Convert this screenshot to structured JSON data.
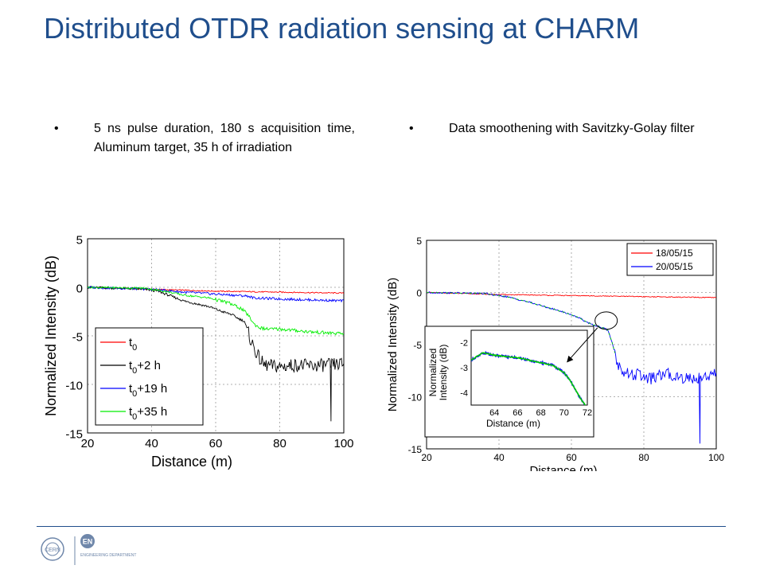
{
  "slide": {
    "title": "Distributed OTDR radiation sensing at CHARM",
    "bullet_left": "5 ns pulse duration, 180 s acquisition time, Aluminum target, 35 h of irradiation",
    "bullet_right": "Data smoothening with Savitzky-Golay filter",
    "bullet_symbol": "•",
    "colors": {
      "title": "#1f4e8c",
      "footer_line": "#1f4e8c"
    },
    "logos": [
      "CERN",
      "EN",
      "ENGINEERING DEPARTMENT"
    ]
  },
  "chart_data": [
    {
      "type": "line",
      "xlabel": "Distance (m)",
      "ylabel": "Normalized Intensity (dB)",
      "xlim": [
        20,
        100
      ],
      "ylim": [
        -15,
        5
      ],
      "xticks": [
        "20",
        "40",
        "60",
        "80",
        "100"
      ],
      "yticks": [
        "5",
        "0",
        "-5",
        "-10",
        "-15"
      ],
      "grid": true,
      "legend_position": "bottom-left",
      "series": [
        {
          "name": "t0",
          "label_base": "t",
          "label_sub": "0",
          "label_suffix": "",
          "color": "#ff0000",
          "x": [
            20,
            40,
            60,
            80,
            100
          ],
          "y": [
            0,
            -0.2,
            -0.4,
            -0.5,
            -0.6
          ]
        },
        {
          "name": "t0+2 h",
          "label_base": "t",
          "label_sub": "0",
          "label_suffix": "+2 h",
          "color": "#000000",
          "x": [
            20,
            30,
            38,
            42,
            46,
            50,
            54,
            58,
            62,
            65,
            67,
            69,
            71,
            73,
            75,
            80,
            85,
            90,
            95,
            100
          ],
          "y": [
            0,
            -0.1,
            -0.2,
            -0.4,
            -0.9,
            -1.4,
            -1.7,
            -2.0,
            -2.5,
            -2.8,
            -3.2,
            -3.5,
            -5.5,
            -7.0,
            -8.0,
            -8.2,
            -8.0,
            -8.1,
            -8.0,
            -7.9
          ]
        },
        {
          "name": "t0+19 h",
          "label_base": "t",
          "label_sub": "0",
          "label_suffix": "+19 h",
          "color": "#0000ff",
          "x": [
            20,
            40,
            50,
            60,
            70,
            72,
            80,
            90,
            100
          ],
          "y": [
            0,
            -0.2,
            -0.5,
            -0.7,
            -0.9,
            -1.1,
            -1.2,
            -1.3,
            -1.4
          ]
        },
        {
          "name": "t0+35 h",
          "label_base": "t",
          "label_sub": "0",
          "label_suffix": "+35 h",
          "color": "#00ee00",
          "x": [
            20,
            38,
            44,
            50,
            58,
            64,
            68,
            70,
            72,
            74,
            76,
            80,
            90,
            100
          ],
          "y": [
            0,
            -0.1,
            -0.4,
            -0.8,
            -1.1,
            -1.6,
            -2.2,
            -2.8,
            -3.8,
            -4.2,
            -4.3,
            -4.3,
            -4.6,
            -4.8
          ]
        }
      ]
    },
    {
      "type": "line",
      "xlabel": "Distance (m)",
      "ylabel": "Normalized Intensity (dB)",
      "xlim": [
        20,
        100
      ],
      "ylim": [
        -15,
        5
      ],
      "xticks": [
        "20",
        "40",
        "60",
        "80",
        "100"
      ],
      "yticks": [
        "5",
        "0",
        "-5",
        "-10",
        "-15"
      ],
      "grid": true,
      "legend_position": "top-right",
      "series": [
        {
          "name": "18/05/15",
          "color": "#ff0000",
          "x": [
            20,
            40,
            60,
            80,
            100
          ],
          "y": [
            0,
            -0.2,
            -0.3,
            -0.4,
            -0.5
          ]
        },
        {
          "name": "20/05/15",
          "color": "#0000ff",
          "x": [
            20,
            36,
            42,
            48,
            54,
            58,
            62,
            64,
            66,
            68,
            70,
            71,
            72,
            73,
            75,
            78,
            82,
            86,
            90,
            94,
            96,
            100
          ],
          "y": [
            0,
            -0.1,
            -0.4,
            -0.9,
            -1.5,
            -1.9,
            -2.4,
            -2.8,
            -3.1,
            -3.3,
            -3.6,
            -4.5,
            -5.8,
            -7.0,
            -7.8,
            -7.9,
            -8.3,
            -7.8,
            -8.1,
            -8.3,
            -8.0,
            -7.9
          ]
        }
      ],
      "inset": {
        "xlabel": "Distance (m)",
        "ylabel": "Normalized Intensity (dB)",
        "xlim": [
          62,
          72
        ],
        "ylim": [
          -4.5,
          -1.5
        ],
        "xticks": [
          "64",
          "66",
          "68",
          "70",
          "72"
        ],
        "yticks": [
          "-2",
          "-3",
          "-4"
        ],
        "x": [
          62,
          63,
          64,
          65,
          66,
          67,
          68,
          69,
          70,
          70.5,
          71,
          71.5,
          72
        ],
        "y": [
          -2.7,
          -2.4,
          -2.5,
          -2.55,
          -2.6,
          -2.7,
          -2.8,
          -2.9,
          -3.2,
          -3.5,
          -3.9,
          -4.3,
          -4.6
        ],
        "raw_color": "#0000ff",
        "smooth_color": "#00cc00"
      }
    }
  ]
}
